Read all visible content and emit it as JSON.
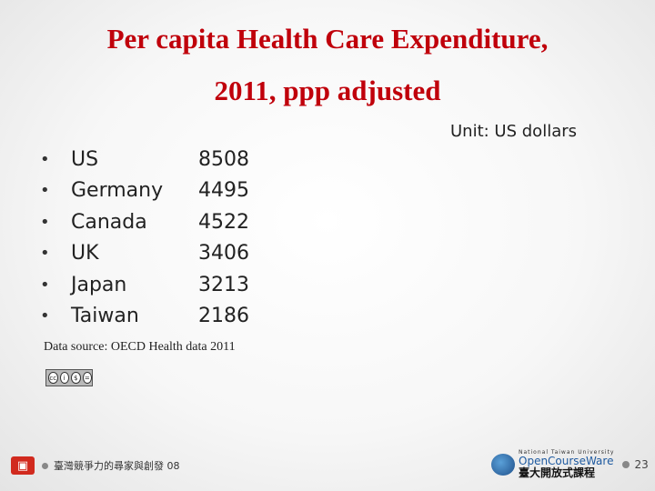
{
  "title": {
    "line1": "Per capita Health Care Expenditure,",
    "line2": "2011, ppp adjusted"
  },
  "unit": "Unit: US dollars",
  "bullet": "•",
  "rows": [
    {
      "country": "US",
      "value": "8508"
    },
    {
      "country": "Germany",
      "value": "4495"
    },
    {
      "country": "Canada",
      "value": "4522"
    },
    {
      "country": "UK",
      "value": "3406"
    },
    {
      "country": "Japan",
      "value": "3213"
    },
    {
      "country": "Taiwan",
      "value": "2186"
    }
  ],
  "source": "Data source: OECD Health data 2011",
  "license_badge": {
    "icons": [
      "creative-commons-icon",
      "attribution-icon",
      "noncommercial-icon",
      "noderivatives-icon"
    ]
  },
  "footer": {
    "left_text": "臺灣競爭力的尋家與創發 08",
    "logo_glyph": "▣",
    "ocw_small": "National Taiwan University",
    "ocw_name": "OpenCourseWare",
    "ocw_cn": "臺大開放式課程",
    "page_number": "23"
  },
  "colors": {
    "title": "#c0000b",
    "ocw_blue": "#1e5aa0"
  }
}
